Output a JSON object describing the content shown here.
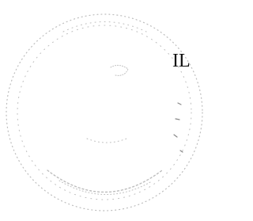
{
  "seal": {
    "label": "IL"
  }
}
